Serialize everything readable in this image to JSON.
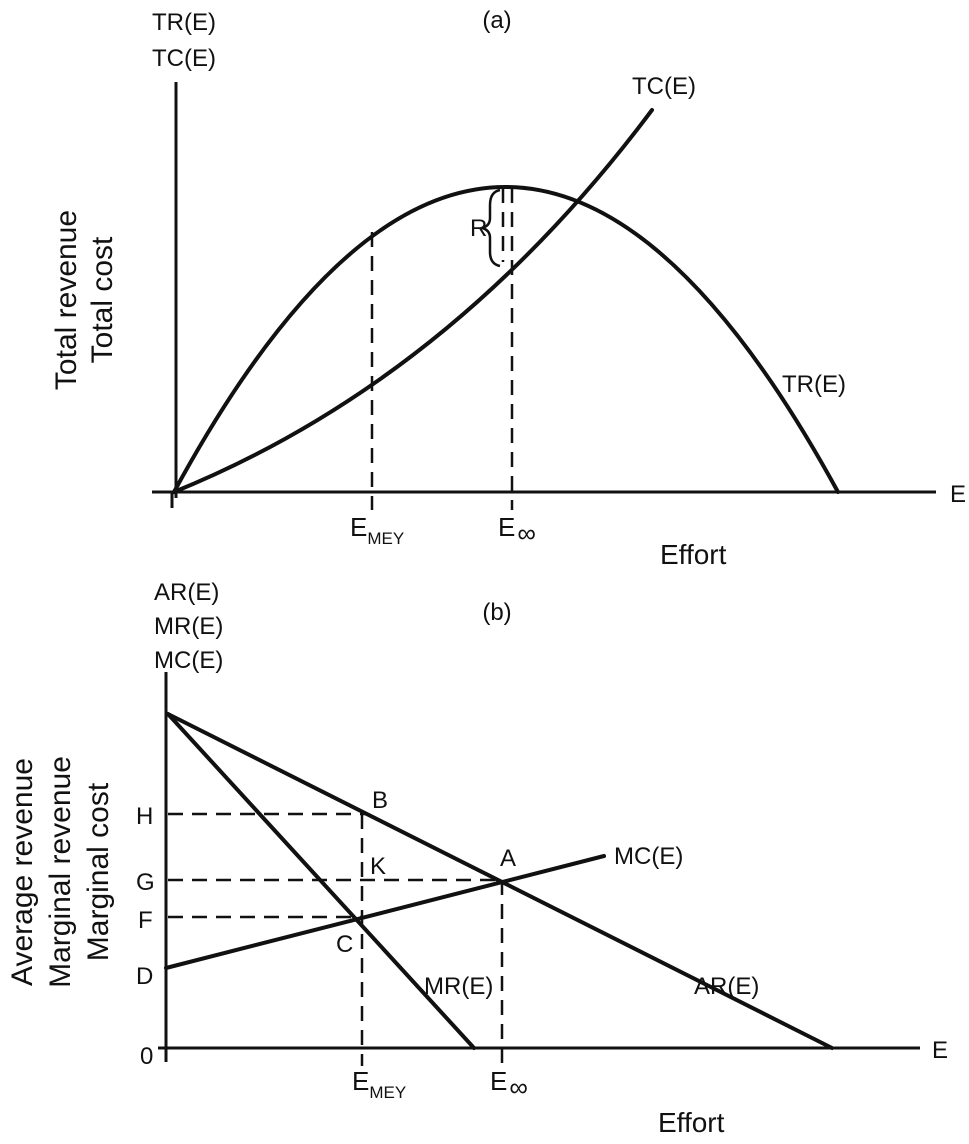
{
  "panel_a": {
    "panel_label": "(a)",
    "y_axis_tick_labels": [
      "TR(E)",
      "TC(E)"
    ],
    "y_axis_title": [
      "Total revenue",
      "Total cost"
    ],
    "x_axis_end_label": "E",
    "x_axis_title": "Effort",
    "curve_labels": {
      "tc": "TC(E)",
      "tr": "TR(E)"
    },
    "bracket_label": "R",
    "x_markers": [
      {
        "main": "E",
        "sub": "MEY"
      },
      {
        "main": "E",
        "sub": "∞"
      }
    ]
  },
  "panel_b": {
    "panel_label": "(b)",
    "y_axis_tick_labels": [
      "AR(E)",
      "MR(E)",
      "MC(E)"
    ],
    "y_axis_title": [
      "Average revenue",
      "Marginal revenue",
      "Marginal cost"
    ],
    "x_axis_end_label": "E",
    "x_axis_title": "Effort",
    "origin_label": "0",
    "y_level_labels": [
      "H",
      "G",
      "F",
      "D"
    ],
    "point_labels": {
      "b": "B",
      "k": "K",
      "a": "A",
      "c": "C"
    },
    "curve_labels": {
      "mc": "MC(E)",
      "mr": "MR(E)",
      "ar": "AR(E)"
    },
    "x_markers": [
      {
        "main": "E",
        "sub": "MEY"
      },
      {
        "main": "E",
        "sub": "∞"
      }
    ]
  }
}
